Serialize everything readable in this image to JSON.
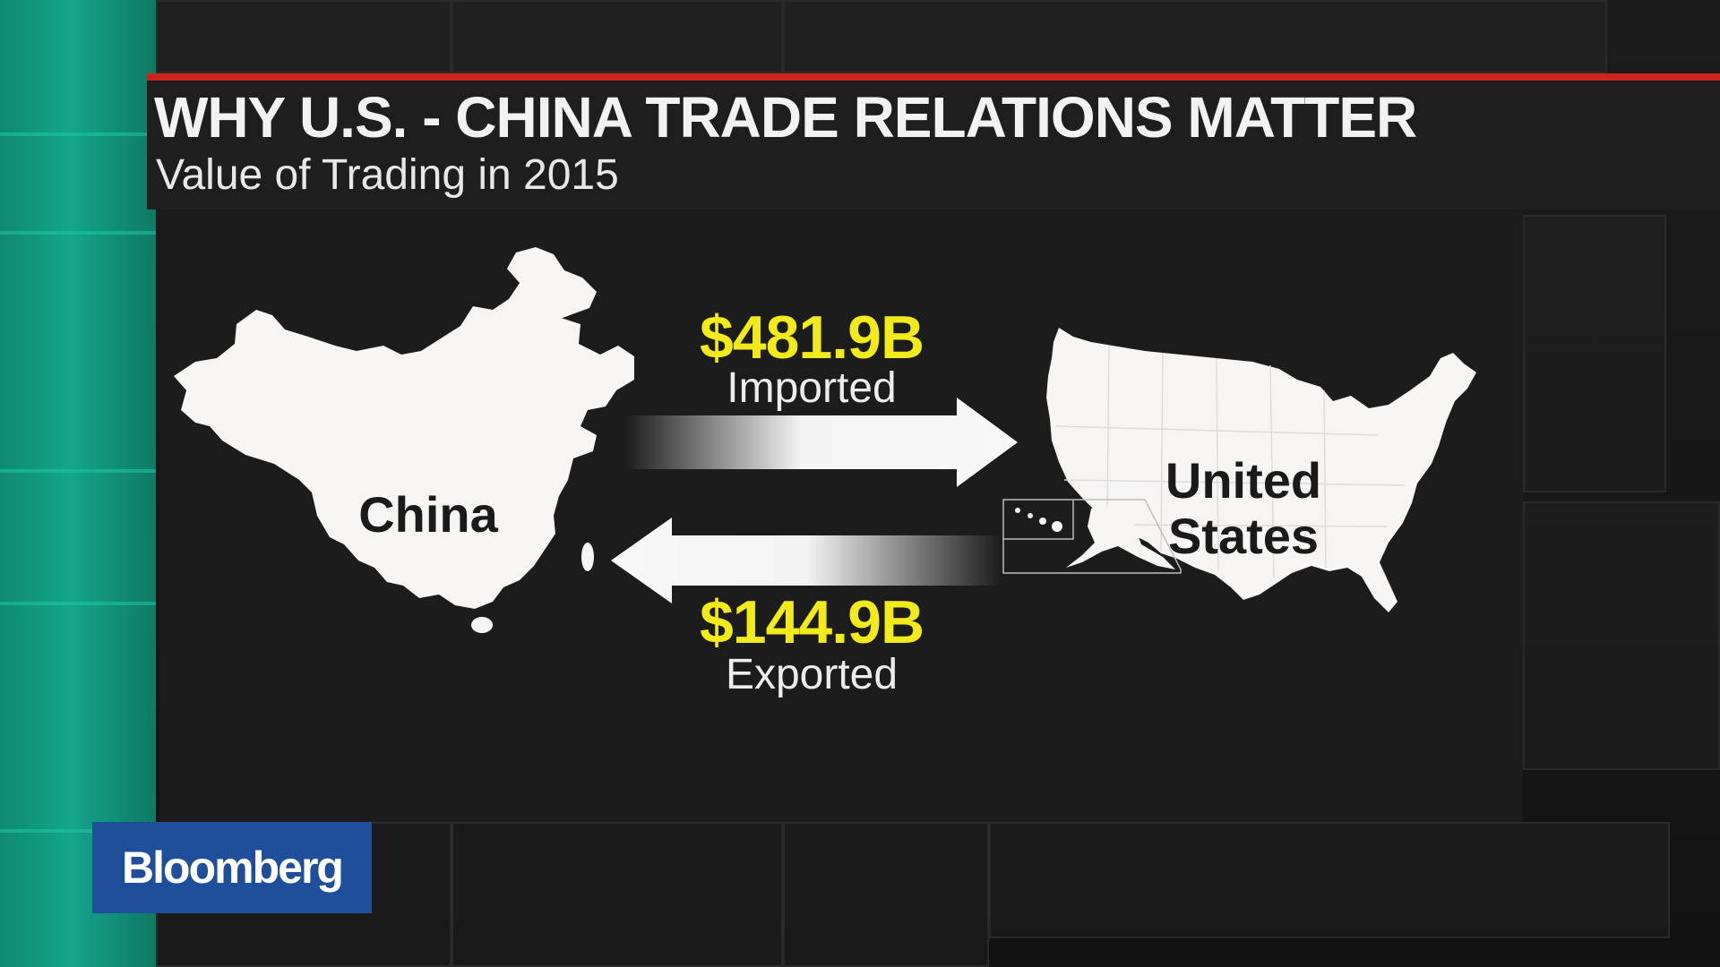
{
  "header": {
    "title": "WHY U.S. - CHINA TRADE RELATIONS MATTER",
    "subtitle": "Value of Trading in 2015"
  },
  "diagram": {
    "left_country": "China",
    "right_country_line1": "United",
    "right_country_line2": "States",
    "import_value": "$481.9B",
    "import_label": "Imported",
    "export_value": "$144.9B",
    "export_label": "Exported"
  },
  "brand": {
    "logo_text": "Bloomberg"
  },
  "colors": {
    "accent_red": "#d0231d",
    "value_yellow": "#f2ea1a",
    "teal": "#14a58a",
    "logo_blue": "#1f4f9a"
  }
}
